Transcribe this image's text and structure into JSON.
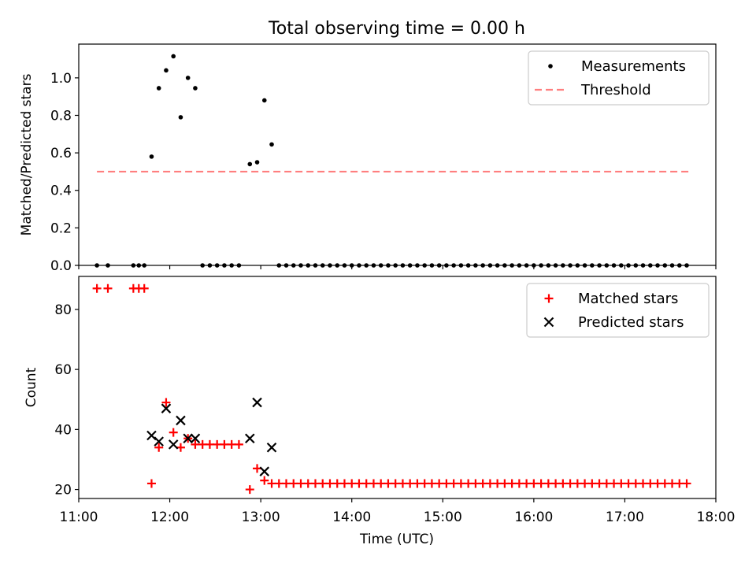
{
  "chart_data": {
    "title": "Total observing time = 0.00 h",
    "xlabel": "Time (UTC)",
    "xlim": [
      11.0,
      18.0
    ],
    "x_ticks": [
      "11:00",
      "12:00",
      "13:00",
      "14:00",
      "15:00",
      "16:00",
      "17:00",
      "18:00"
    ],
    "x_tick_values": [
      11,
      12,
      13,
      14,
      15,
      16,
      17,
      18
    ],
    "times": [
      11.2,
      11.32,
      11.6,
      11.66,
      11.72,
      11.8,
      11.88,
      11.96,
      12.04,
      12.12,
      12.2,
      12.28,
      12.36,
      12.44,
      12.52,
      12.6,
      12.68,
      12.76,
      12.88,
      12.96,
      13.04,
      13.12,
      13.2,
      13.28,
      13.36,
      13.44,
      13.52,
      13.6,
      13.68,
      13.76,
      13.84,
      13.92,
      14.0,
      14.08,
      14.16,
      14.24,
      14.32,
      14.4,
      14.48,
      14.56,
      14.64,
      14.72,
      14.8,
      14.88,
      14.96,
      15.04,
      15.12,
      15.2,
      15.28,
      15.36,
      15.44,
      15.52,
      15.6,
      15.68,
      15.76,
      15.84,
      15.92,
      16.0,
      16.08,
      16.16,
      16.24,
      16.32,
      16.4,
      16.48,
      16.56,
      16.64,
      16.72,
      16.8,
      16.88,
      16.96,
      17.04,
      17.12,
      17.2,
      17.28,
      17.36,
      17.44,
      17.52,
      17.6,
      17.68
    ],
    "panels": [
      {
        "type": "scatter",
        "ylabel": "Matched/Predicted stars",
        "ylim": [
          0,
          1.18
        ],
        "y_ticks": [
          "0.0",
          "0.2",
          "0.4",
          "0.6",
          "0.8",
          "1.0"
        ],
        "y_tick_values": [
          0,
          0.2,
          0.4,
          0.6,
          0.8,
          1.0
        ],
        "legend_position": "top-right",
        "threshold": {
          "name": "Threshold",
          "value": 0.5,
          "x_range": [
            11.2,
            17.7
          ],
          "color": "#ff7f7f"
        },
        "series": [
          {
            "name": "Measurements",
            "marker": "dot",
            "color": "#000000",
            "values": [
              0,
              0,
              0,
              0,
              0,
              0.58,
              0.945,
              1.04,
              1.115,
              0.79,
              1.0,
              0.945,
              0,
              0,
              0,
              0,
              0,
              0,
              0.54,
              0.55,
              0.88,
              0.645,
              0,
              0,
              0,
              0,
              0,
              0,
              0,
              0,
              0,
              0,
              0,
              0,
              0,
              0,
              0,
              0,
              0,
              0,
              0,
              0,
              0,
              0,
              0,
              0,
              0,
              0,
              0,
              0,
              0,
              0,
              0,
              0,
              0,
              0,
              0,
              0,
              0,
              0,
              0,
              0,
              0,
              0,
              0,
              0,
              0,
              0,
              0,
              0,
              0,
              0,
              0,
              0,
              0,
              0,
              0,
              0,
              0
            ]
          }
        ]
      },
      {
        "type": "scatter",
        "ylabel": "Count",
        "ylim": [
          17,
          91
        ],
        "y_ticks": [
          "20",
          "40",
          "60",
          "80"
        ],
        "y_tick_values": [
          20,
          40,
          60,
          80
        ],
        "legend_position": "top-right",
        "series": [
          {
            "name": "Matched stars",
            "marker": "plus",
            "color": "#ff0000",
            "values": [
              87,
              87,
              87,
              87,
              87,
              22,
              34,
              49,
              39,
              34,
              37,
              35,
              35,
              35,
              35,
              35,
              35,
              35,
              20,
              27,
              23,
              22,
              22,
              22,
              22,
              22,
              22,
              22,
              22,
              22,
              22,
              22,
              22,
              22,
              22,
              22,
              22,
              22,
              22,
              22,
              22,
              22,
              22,
              22,
              22,
              22,
              22,
              22,
              22,
              22,
              22,
              22,
              22,
              22,
              22,
              22,
              22,
              22,
              22,
              22,
              22,
              22,
              22,
              22,
              22,
              22,
              22,
              22,
              22,
              22,
              22,
              22,
              22,
              22,
              22,
              22,
              22,
              22,
              22
            ]
          },
          {
            "name": "Predicted stars",
            "marker": "x",
            "color": "#000000",
            "points": [
              [
                11.8,
                38
              ],
              [
                11.88,
                36
              ],
              [
                11.96,
                47
              ],
              [
                12.04,
                35
              ],
              [
                12.12,
                43
              ],
              [
                12.2,
                37
              ],
              [
                12.28,
                37
              ],
              [
                12.88,
                37
              ],
              [
                12.96,
                49
              ],
              [
                13.04,
                26
              ],
              [
                13.12,
                34
              ]
            ]
          }
        ]
      }
    ]
  }
}
